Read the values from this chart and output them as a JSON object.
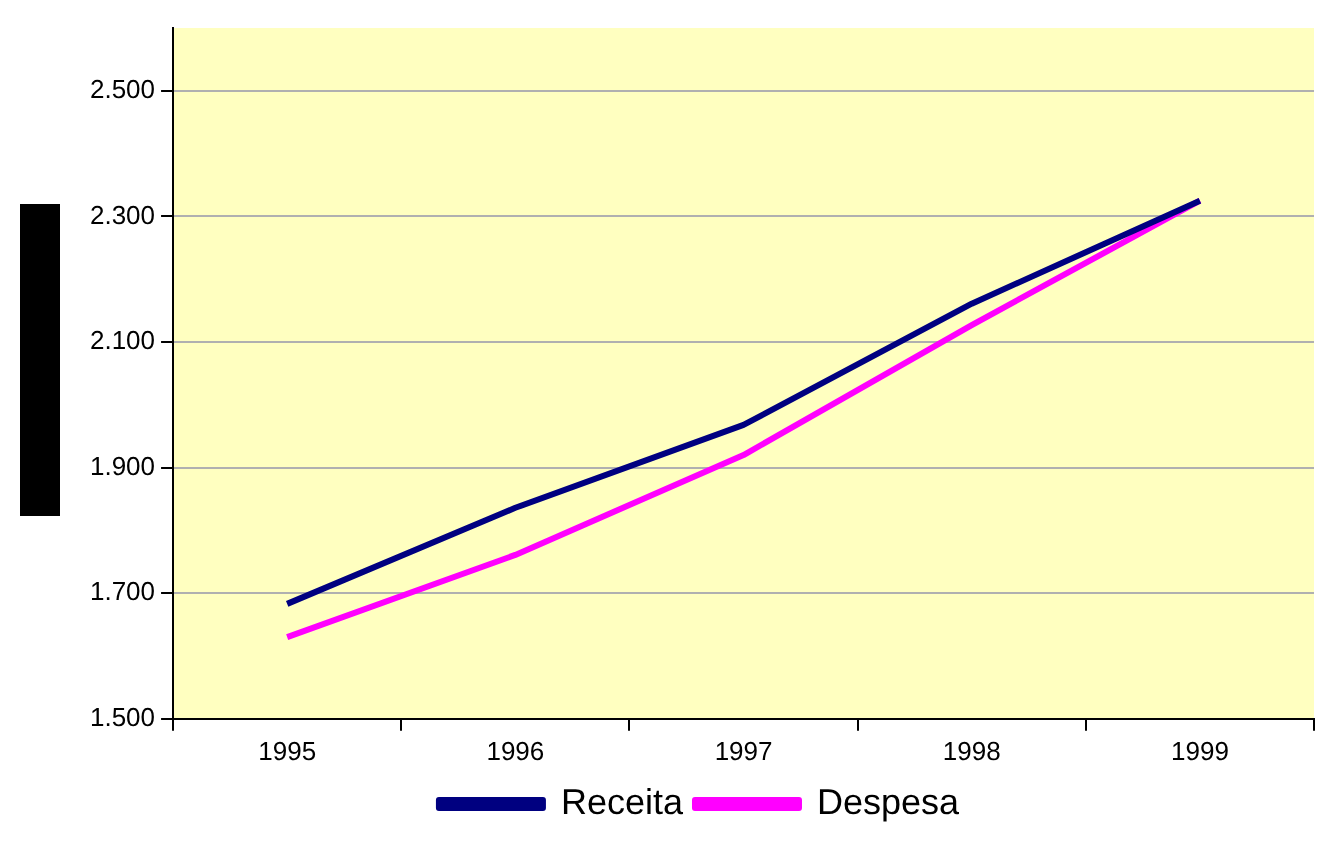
{
  "chart_data": {
    "type": "line",
    "categories": [
      "1995",
      "1996",
      "1997",
      "1998",
      "1999"
    ],
    "series": [
      {
        "name": "Receita",
        "color": "#000080",
        "values": [
          1683,
          1836,
          1968,
          2161,
          2325
        ]
      },
      {
        "name": "Despesa",
        "color": "#ff00ff",
        "values": [
          1630,
          1761,
          1920,
          2127,
          2325
        ]
      }
    ],
    "ylim": [
      1500,
      2600
    ],
    "yticks": [
      {
        "value": 1500,
        "label": "1.500"
      },
      {
        "value": 1700,
        "label": "1.700"
      },
      {
        "value": 1900,
        "label": "1.900"
      },
      {
        "value": 2100,
        "label": "2.100"
      },
      {
        "value": 2300,
        "label": "2.300"
      },
      {
        "value": 2500,
        "label": "2.500"
      }
    ],
    "grid": "y",
    "legend": "bottom",
    "marker": "none",
    "line_style": "solid"
  }
}
